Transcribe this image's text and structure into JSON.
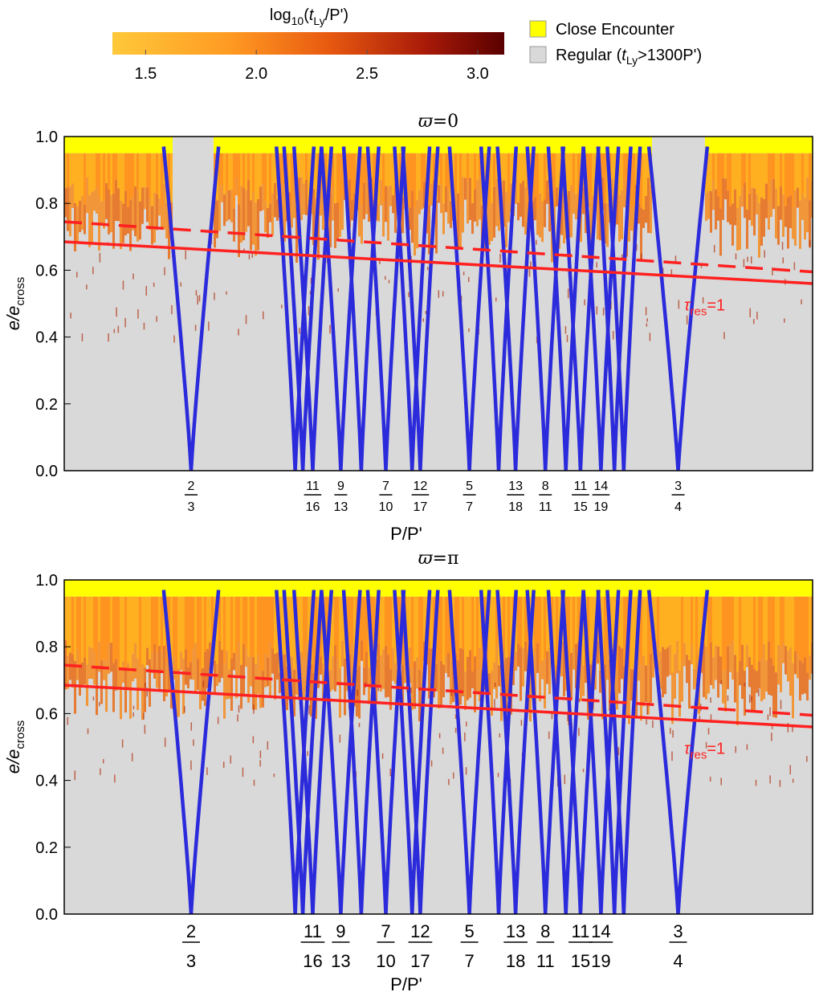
{
  "colorbar": {
    "label_main": "log",
    "label_sub": "10",
    "label_open": "(",
    "label_t": "t",
    "label_t_sub": "Ly",
    "label_close": "/P')",
    "ticks": [
      "1.5",
      "2.0",
      "2.5",
      "3.0"
    ],
    "tick_values": [
      1.5,
      2.0,
      2.5,
      3.0
    ],
    "range": [
      1.35,
      3.12
    ]
  },
  "legend": {
    "close_encounter": "Close Encounter",
    "regular_prefix": "Regular (",
    "regular_t": "t",
    "regular_sub": "Ly",
    "regular_suffix": ">1300P')",
    "close_color": "#ffff00",
    "regular_color": "#d9d9d9"
  },
  "colors": {
    "resonance_curve": "#2b2bdc",
    "tau_line": "#ff2020",
    "plot_background": "#d9d9d9",
    "close_encounter": "#ffff00"
  },
  "chart_data": [
    {
      "type": "line",
      "title_symbol": "ϖ",
      "title_value": "=0",
      "xlabel": "P/P'",
      "ylabel_main": "e/e",
      "ylabel_sub": "cross",
      "xlim": [
        0.645,
        0.773
      ],
      "ylim": [
        0,
        1
      ],
      "yticks": [
        "0.0",
        "0.2",
        "0.4",
        "0.6",
        "0.8",
        "1.0"
      ],
      "ytick_values": [
        0,
        0.2,
        0.4,
        0.6,
        0.8,
        1.0
      ],
      "resonance_labels": [
        {
          "num": "2",
          "den": "3",
          "x": 0.6667
        },
        {
          "num": "11",
          "den": "16",
          "x": 0.6875
        },
        {
          "num": "9",
          "den": "13",
          "x": 0.6923
        },
        {
          "num": "7",
          "den": "10",
          "x": 0.7
        },
        {
          "num": "12",
          "den": "17",
          "x": 0.7059
        },
        {
          "num": "5",
          "den": "7",
          "x": 0.7143
        },
        {
          "num": "13",
          "den": "18",
          "x": 0.7222
        },
        {
          "num": "8",
          "den": "11",
          "x": 0.7273
        },
        {
          "num": "11",
          "den": "15",
          "x": 0.7333
        },
        {
          "num": "14",
          "den": "19",
          "x": 0.7368
        },
        {
          "num": "3",
          "den": "4",
          "x": 0.75
        }
      ],
      "tau_res_label": "τ",
      "tau_res_sub": "res",
      "tau_res_value": "=1",
      "tau_res_solid": [
        [
          0.645,
          0.685
        ],
        [
          0.773,
          0.56
        ]
      ],
      "tau_res_dashed": [
        [
          0.645,
          0.745
        ],
        [
          0.773,
          0.595
        ]
      ]
    },
    {
      "type": "line",
      "title_symbol": "ϖ",
      "title_value": "=π",
      "xlabel": "P/P'",
      "ylabel_main": "e/e",
      "ylabel_sub": "cross",
      "xlim": [
        0.645,
        0.773
      ],
      "ylim": [
        0,
        1
      ],
      "yticks": [
        "0.0",
        "0.2",
        "0.4",
        "0.6",
        "0.8",
        "1.0"
      ],
      "ytick_values": [
        0,
        0.2,
        0.4,
        0.6,
        0.8,
        1.0
      ],
      "resonance_labels": [
        {
          "num": "2",
          "den": "3",
          "x": 0.6667
        },
        {
          "num": "11",
          "den": "16",
          "x": 0.6875
        },
        {
          "num": "9",
          "den": "13",
          "x": 0.6923
        },
        {
          "num": "7",
          "den": "10",
          "x": 0.7
        },
        {
          "num": "12",
          "den": "17",
          "x": 0.7059
        },
        {
          "num": "5",
          "den": "7",
          "x": 0.7143
        },
        {
          "num": "13",
          "den": "18",
          "x": 0.7222
        },
        {
          "num": "8",
          "den": "11",
          "x": 0.7273
        },
        {
          "num": "11",
          "den": "15",
          "x": 0.7333
        },
        {
          "num": "14",
          "den": "19",
          "x": 0.7368
        },
        {
          "num": "3",
          "den": "4",
          "x": 0.75
        }
      ],
      "tau_res_label": "τ",
      "tau_res_sub": "res",
      "tau_res_value": "=1",
      "tau_res_solid": [
        [
          0.645,
          0.685
        ],
        [
          0.773,
          0.56
        ]
      ],
      "tau_res_dashed": [
        [
          0.645,
          0.745
        ],
        [
          0.773,
          0.595
        ]
      ]
    }
  ]
}
